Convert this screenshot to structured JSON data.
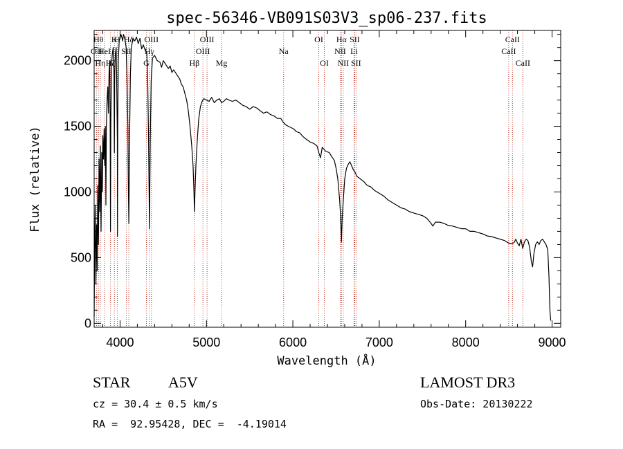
{
  "chart_data": {
    "type": "line",
    "title": "spec-56346-VB091S03V3_sp06-237.fits",
    "xlabel": "Wavelength (Å)",
    "ylabel": "Flux (relative)",
    "xlim": [
      3700,
      9100
    ],
    "ylim": [
      -30,
      2230
    ],
    "xticks": [
      4000,
      5000,
      6000,
      7000,
      8000,
      9000
    ],
    "yticks": [
      0,
      500,
      1000,
      1500,
      2000
    ],
    "x_minor_step": 200,
    "y_minor_step": 100,
    "series": [
      {
        "name": "flux",
        "points": [
          [
            3700,
            50
          ],
          [
            3705,
            500
          ],
          [
            3712,
            900
          ],
          [
            3720,
            300
          ],
          [
            3728,
            750
          ],
          [
            3735,
            400
          ],
          [
            3742,
            1050
          ],
          [
            3750,
            600
          ],
          [
            3757,
            1250
          ],
          [
            3765,
            850
          ],
          [
            3772,
            1350
          ],
          [
            3780,
            700
          ],
          [
            3788,
            1300
          ],
          [
            3795,
            1000
          ],
          [
            3800,
            1430
          ],
          [
            3808,
            1250
          ],
          [
            3815,
            1480
          ],
          [
            3822,
            1200
          ],
          [
            3830,
            1500
          ],
          [
            3836,
            900
          ],
          [
            3842,
            1520
          ],
          [
            3850,
            1700
          ],
          [
            3858,
            1800
          ],
          [
            3865,
            1600
          ],
          [
            3872,
            1900
          ],
          [
            3880,
            2000
          ],
          [
            3885,
            1600
          ],
          [
            3889,
            700
          ],
          [
            3893,
            1500
          ],
          [
            3900,
            1950
          ],
          [
            3910,
            2050
          ],
          [
            3920,
            2100
          ],
          [
            3930,
            1900
          ],
          [
            3934,
            1300
          ],
          [
            3938,
            1900
          ],
          [
            3945,
            2050
          ],
          [
            3955,
            2100
          ],
          [
            3962,
            1800
          ],
          [
            3968,
            1400
          ],
          [
            3970,
            660
          ],
          [
            3973,
            1500
          ],
          [
            3980,
            2000
          ],
          [
            3990,
            2150
          ],
          [
            4000,
            2170
          ],
          [
            4010,
            2200
          ],
          [
            4020,
            2180
          ],
          [
            4030,
            2150
          ],
          [
            4040,
            2200
          ],
          [
            4050,
            2180
          ],
          [
            4060,
            2150
          ],
          [
            4070,
            2100
          ],
          [
            4080,
            1900
          ],
          [
            4090,
            1500
          ],
          [
            4095,
            1100
          ],
          [
            4101,
            760
          ],
          [
            4106,
            1100
          ],
          [
            4112,
            1500
          ],
          [
            4120,
            1900
          ],
          [
            4130,
            2100
          ],
          [
            4150,
            2170
          ],
          [
            4170,
            2150
          ],
          [
            4190,
            2180
          ],
          [
            4210,
            2130
          ],
          [
            4230,
            2170
          ],
          [
            4250,
            2090
          ],
          [
            4270,
            2120
          ],
          [
            4290,
            2080
          ],
          [
            4310,
            2060
          ],
          [
            4320,
            1850
          ],
          [
            4330,
            1400
          ],
          [
            4336,
            1000
          ],
          [
            4340,
            720
          ],
          [
            4344,
            1000
          ],
          [
            4350,
            1400
          ],
          [
            4360,
            1850
          ],
          [
            4375,
            2020
          ],
          [
            4400,
            2040
          ],
          [
            4430,
            2000
          ],
          [
            4460,
            1990
          ],
          [
            4480,
            1950
          ],
          [
            4500,
            2000
          ],
          [
            4530,
            1970
          ],
          [
            4560,
            1940
          ],
          [
            4580,
            1960
          ],
          [
            4600,
            1910
          ],
          [
            4620,
            1930
          ],
          [
            4650,
            1900
          ],
          [
            4670,
            1880
          ],
          [
            4690,
            1860
          ],
          [
            4710,
            1820
          ],
          [
            4730,
            1800
          ],
          [
            4750,
            1750
          ],
          [
            4770,
            1700
          ],
          [
            4790,
            1620
          ],
          [
            4810,
            1500
          ],
          [
            4830,
            1350
          ],
          [
            4845,
            1200
          ],
          [
            4855,
            1000
          ],
          [
            4861,
            850
          ],
          [
            4867,
            1000
          ],
          [
            4878,
            1200
          ],
          [
            4892,
            1380
          ],
          [
            4910,
            1550
          ],
          [
            4930,
            1650
          ],
          [
            4950,
            1690
          ],
          [
            4970,
            1710
          ],
          [
            5000,
            1700
          ],
          [
            5030,
            1690
          ],
          [
            5060,
            1720
          ],
          [
            5090,
            1680
          ],
          [
            5120,
            1700
          ],
          [
            5150,
            1710
          ],
          [
            5175,
            1680
          ],
          [
            5200,
            1690
          ],
          [
            5230,
            1710
          ],
          [
            5260,
            1700
          ],
          [
            5300,
            1690
          ],
          [
            5340,
            1700
          ],
          [
            5380,
            1680
          ],
          [
            5420,
            1660
          ],
          [
            5460,
            1650
          ],
          [
            5500,
            1630
          ],
          [
            5540,
            1650
          ],
          [
            5580,
            1640
          ],
          [
            5620,
            1620
          ],
          [
            5660,
            1600
          ],
          [
            5700,
            1610
          ],
          [
            5740,
            1590
          ],
          [
            5780,
            1580
          ],
          [
            5820,
            1560
          ],
          [
            5860,
            1560
          ],
          [
            5890,
            1530
          ],
          [
            5920,
            1510
          ],
          [
            5950,
            1500
          ],
          [
            5980,
            1490
          ],
          [
            6010,
            1480
          ],
          [
            6040,
            1460
          ],
          [
            6080,
            1450
          ],
          [
            6120,
            1420
          ],
          [
            6160,
            1400
          ],
          [
            6200,
            1380
          ],
          [
            6240,
            1370
          ],
          [
            6280,
            1350
          ],
          [
            6300,
            1300
          ],
          [
            6320,
            1260
          ],
          [
            6340,
            1340
          ],
          [
            6380,
            1310
          ],
          [
            6420,
            1300
          ],
          [
            6450,
            1270
          ],
          [
            6480,
            1240
          ],
          [
            6500,
            1180
          ],
          [
            6520,
            1100
          ],
          [
            6540,
            950
          ],
          [
            6555,
            800
          ],
          [
            6563,
            620
          ],
          [
            6571,
            800
          ],
          [
            6585,
            950
          ],
          [
            6600,
            1100
          ],
          [
            6620,
            1180
          ],
          [
            6640,
            1210
          ],
          [
            6660,
            1230
          ],
          [
            6680,
            1200
          ],
          [
            6700,
            1170
          ],
          [
            6720,
            1150
          ],
          [
            6740,
            1120
          ],
          [
            6780,
            1100
          ],
          [
            6820,
            1080
          ],
          [
            6860,
            1050
          ],
          [
            6900,
            1040
          ],
          [
            6950,
            1010
          ],
          [
            7000,
            990
          ],
          [
            7050,
            970
          ],
          [
            7100,
            940
          ],
          [
            7150,
            920
          ],
          [
            7200,
            900
          ],
          [
            7250,
            880
          ],
          [
            7300,
            870
          ],
          [
            7350,
            850
          ],
          [
            7400,
            840
          ],
          [
            7450,
            830
          ],
          [
            7500,
            820
          ],
          [
            7550,
            800
          ],
          [
            7600,
            760
          ],
          [
            7620,
            740
          ],
          [
            7650,
            770
          ],
          [
            7700,
            770
          ],
          [
            7750,
            760
          ],
          [
            7800,
            745
          ],
          [
            7850,
            740
          ],
          [
            7900,
            730
          ],
          [
            7950,
            720
          ],
          [
            8000,
            720
          ],
          [
            8050,
            700
          ],
          [
            8100,
            700
          ],
          [
            8150,
            690
          ],
          [
            8200,
            680
          ],
          [
            8250,
            665
          ],
          [
            8300,
            660
          ],
          [
            8350,
            650
          ],
          [
            8400,
            640
          ],
          [
            8450,
            630
          ],
          [
            8500,
            610
          ],
          [
            8530,
            605
          ],
          [
            8560,
            615
          ],
          [
            8580,
            640
          ],
          [
            8600,
            610
          ],
          [
            8620,
            590
          ],
          [
            8640,
            640
          ],
          [
            8660,
            570
          ],
          [
            8680,
            620
          ],
          [
            8700,
            640
          ],
          [
            8720,
            630
          ],
          [
            8740,
            580
          ],
          [
            8760,
            470
          ],
          [
            8775,
            430
          ],
          [
            8790,
            530
          ],
          [
            8810,
            600
          ],
          [
            8830,
            620
          ],
          [
            8850,
            600
          ],
          [
            8870,
            630
          ],
          [
            8890,
            640
          ],
          [
            8910,
            620
          ],
          [
            8930,
            600
          ],
          [
            8950,
            560
          ],
          [
            8965,
            350
          ],
          [
            8975,
            100
          ],
          [
            8985,
            20
          ]
        ]
      }
    ],
    "lines": [
      {
        "wave": 3727,
        "label": "OII",
        "row": 2
      },
      {
        "wave": 3750,
        "label": "Hθ",
        "row": 1
      },
      {
        "wave": 3771,
        "label": "Hη",
        "row": 3
      },
      {
        "wave": 3820,
        "label": "HeI",
        "row": 2
      },
      {
        "wave": 3889,
        "label": "Hζ",
        "row": 3
      },
      {
        "wave": 3934,
        "label": "K",
        "row": 1
      },
      {
        "wave": 3968,
        "label": "H",
        "row": 1
      },
      {
        "wave": 4072,
        "label": "SII",
        "row": 2
      },
      {
        "wave": 4101,
        "label": "Hδ",
        "row": 1
      },
      {
        "wave": 4305,
        "label": "G",
        "row": 3
      },
      {
        "wave": 4340,
        "label": "Hγ",
        "row": 2
      },
      {
        "wave": 4363,
        "label": "OIII",
        "row": 1
      },
      {
        "wave": 4861,
        "label": "Hβ",
        "row": 3
      },
      {
        "wave": 4959,
        "label": "OIII",
        "row": 2
      },
      {
        "wave": 5007,
        "label": "OIII",
        "row": 1
      },
      {
        "wave": 5175,
        "label": "Mg",
        "row": 3
      },
      {
        "wave": 5893,
        "label": "Na",
        "row": 2
      },
      {
        "wave": 6300,
        "label": "OI",
        "row": 1
      },
      {
        "wave": 6364,
        "label": "OI",
        "row": 3
      },
      {
        "wave": 6548,
        "label": "NII",
        "row": 2
      },
      {
        "wave": 6563,
        "label": "Hα",
        "row": 1
      },
      {
        "wave": 6583,
        "label": "NII",
        "row": 3
      },
      {
        "wave": 6708,
        "label": "Li",
        "row": 2
      },
      {
        "wave": 6716,
        "label": "SII",
        "row": 1
      },
      {
        "wave": 6731,
        "label": "SII",
        "row": 3
      },
      {
        "wave": 8498,
        "label": "CaII",
        "row": 2
      },
      {
        "wave": 8542,
        "label": "CaII",
        "row": 1
      },
      {
        "wave": 8662,
        "label": "CaII",
        "row": 3
      }
    ],
    "line_color": "#c0392b"
  },
  "info": {
    "class_label": "STAR",
    "subclass": "A5V",
    "survey": "LAMOST DR3",
    "cz": "cz = 30.4 ± 0.5 km/s",
    "obs_date": "Obs-Date: 20130222",
    "coords": "RA =  92.95428, DEC =  -4.19014"
  }
}
